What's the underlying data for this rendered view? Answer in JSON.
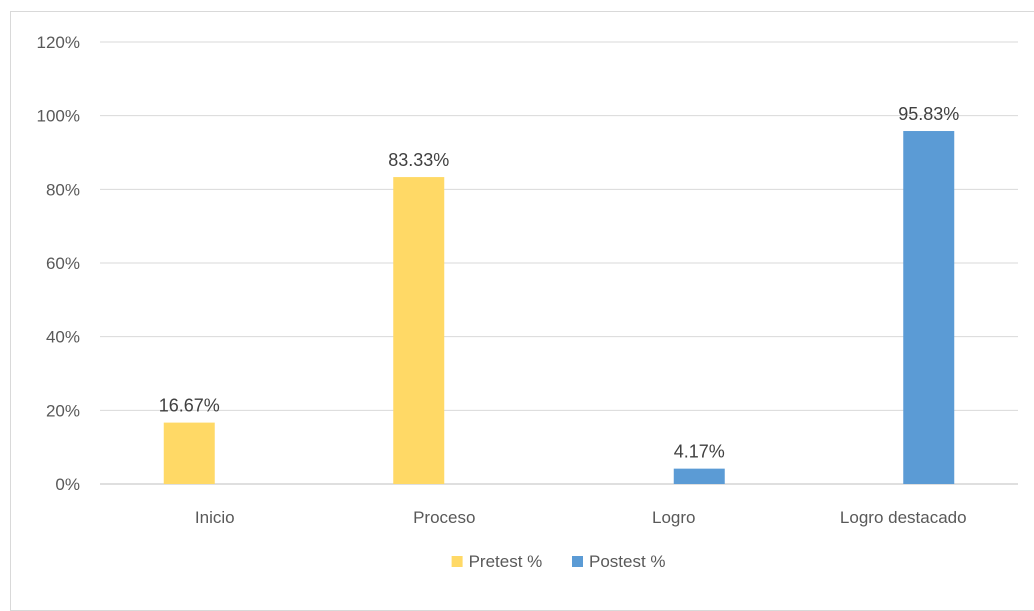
{
  "chart_data": {
    "type": "bar",
    "categories": [
      "Inicio",
      "Proceso",
      "Logro",
      "Logro destacado"
    ],
    "series": [
      {
        "name": "Pretest %",
        "color": "#ffd966",
        "values": [
          16.67,
          83.33,
          0,
          0
        ],
        "labels": [
          "16.67%",
          "83.33%",
          "",
          ""
        ]
      },
      {
        "name": "Postest %",
        "color": "#5b9bd5",
        "values": [
          0,
          0,
          4.17,
          95.83
        ],
        "labels": [
          "",
          "",
          "4.17%",
          "95.83%"
        ]
      }
    ],
    "yticks": [
      "0%",
      "20%",
      "40%",
      "60%",
      "80%",
      "100%",
      "120%"
    ],
    "ylim": [
      0,
      120
    ],
    "grid": true,
    "legend": "bottom"
  }
}
